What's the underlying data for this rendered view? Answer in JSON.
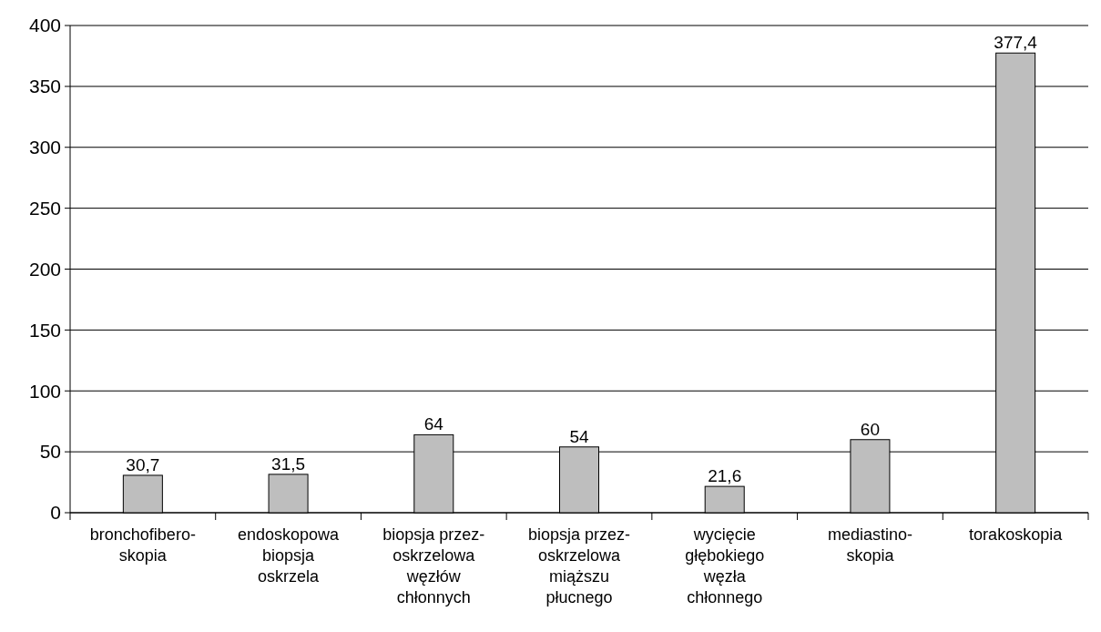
{
  "chart_data": {
    "type": "bar",
    "categories": [
      "bronchofibero-\nskopia",
      "endoskopowa\nbiopsja\noskrzela",
      "biopsja przez-\noskrzelowa\nwęzłów\nchłonnych",
      "biopsja przez-\noskrzelowa\nmiąższu\npłucnego",
      "wycięcie\ngłębokiego\nwęzła\nchłonnego",
      "mediastino-\nskopia",
      "torakoskopia"
    ],
    "values": [
      30.7,
      31.5,
      64,
      54,
      21.6,
      60,
      377.4
    ],
    "value_labels": [
      "30,7",
      "31,5",
      "64",
      "54",
      "21,6",
      "60",
      "377,4"
    ],
    "color": "#bebebe",
    "ylim": [
      0,
      400
    ],
    "yticks": [
      0,
      50,
      100,
      150,
      200,
      250,
      300,
      350,
      400
    ],
    "grid": "y"
  }
}
